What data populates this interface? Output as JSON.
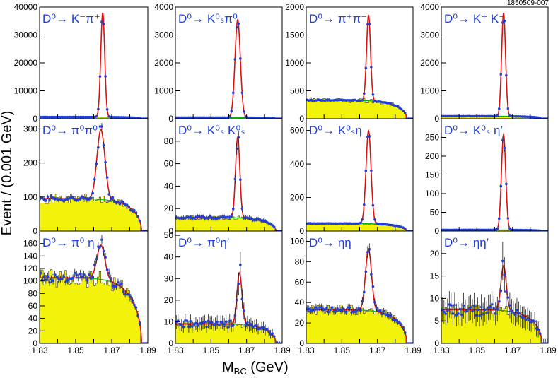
{
  "figure_code": "1850509-007",
  "x_axis_title": "M",
  "x_axis_title_sub": "BC",
  "x_axis_title_unit": " (GeV)",
  "y_axis_title": "Event / (0.001 GeV)",
  "colors": {
    "fit": "#e01010",
    "data": "#1f3fd8",
    "background_fill": "#f2f20a",
    "background_fit": "#10b010",
    "frame": "#000000"
  },
  "chart_data": [
    {
      "type": "line",
      "decay": "D⁰→ K⁻π⁺",
      "ymax": 40000,
      "yticks": [
        "0",
        "10000",
        "20000",
        "30000",
        "40000"
      ],
      "xticks": [],
      "peak_value": 38000,
      "peak_x": 1.865,
      "width": 0.0011,
      "bkg_level": 600
    },
    {
      "type": "line",
      "decay": "D⁰→ K⁰ₛπ⁰",
      "ymax": 4000,
      "yticks": [
        "0",
        "1000",
        "2000",
        "3000",
        "4000"
      ],
      "xticks": [],
      "peak_value": 3550,
      "peak_x": 1.865,
      "width": 0.0015,
      "bkg_level": 40
    },
    {
      "type": "line",
      "decay": "D⁰→ π⁺π⁻",
      "ymax": 2000,
      "yticks": [
        "0",
        "500",
        "1000",
        "1500",
        "2000"
      ],
      "xticks": [],
      "peak_value": 1870,
      "peak_x": 1.865,
      "width": 0.0011,
      "bkg_level": 330
    },
    {
      "type": "line",
      "decay": "D⁰→ K⁺ K⁻",
      "ymax": 4000,
      "yticks": [
        "0",
        "1000",
        "2000",
        "3000",
        "4000"
      ],
      "xticks": [],
      "peak_value": 3800,
      "peak_x": 1.865,
      "width": 0.0011,
      "bkg_level": 90
    },
    {
      "type": "line",
      "decay": "D⁰→ π⁰π⁰",
      "ymax": 330,
      "yticks": [
        "0",
        "100",
        "200",
        "300"
      ],
      "xticks": [],
      "peak_value": 300,
      "peak_x": 1.864,
      "width": 0.0022,
      "bkg_level": 95
    },
    {
      "type": "line",
      "decay": "D⁰→ K⁰ₛ K⁰ₛ",
      "ymax": 100,
      "yticks": [
        "0",
        "20",
        "40",
        "60",
        "80"
      ],
      "xticks": [],
      "peak_value": 84,
      "peak_x": 1.865,
      "width": 0.0012,
      "bkg_level": 12
    },
    {
      "type": "line",
      "decay": "D⁰→ K⁰ₛη",
      "ymax": 670,
      "yticks": [
        "0",
        "200",
        "400",
        "600"
      ],
      "xticks": [],
      "peak_value": 600,
      "peak_x": 1.865,
      "width": 0.0014,
      "bkg_level": 45
    },
    {
      "type": "line",
      "decay": "D⁰→ K⁰ₛ η′",
      "ymax": 300,
      "yticks": [
        "0",
        "50",
        "100",
        "150",
        "200",
        "250"
      ],
      "xticks": [],
      "peak_value": 258,
      "peak_x": 1.865,
      "width": 0.0012,
      "bkg_level": 3
    },
    {
      "type": "line",
      "decay": "D⁰→ π⁰ η",
      "ymax": 180,
      "yticks": [
        "0",
        "20",
        "40",
        "60",
        "80",
        "100",
        "120",
        "140",
        "160"
      ],
      "xticks": [
        "1.83",
        "1.85",
        "1.87",
        "1.89"
      ],
      "peak_value": 160,
      "peak_x": 1.864,
      "width": 0.0022,
      "bkg_level": 105
    },
    {
      "type": "line",
      "decay": "D⁰→ π⁰η′",
      "ymax": 52,
      "yticks": [
        "0",
        "10",
        "20",
        "30",
        "40",
        "50"
      ],
      "xticks": [
        "1.83",
        "1.85",
        "1.87",
        "1.89"
      ],
      "peak_value": 33,
      "peak_x": 1.866,
      "width": 0.0014,
      "bkg_level": 9
    },
    {
      "type": "line",
      "decay": "D⁰→ ηη",
      "ymax": 110,
      "yticks": [
        "0",
        "20",
        "40",
        "60",
        "80",
        "100"
      ],
      "xticks": [
        "1.83",
        "1.85",
        "1.87",
        "1.89"
      ],
      "peak_value": 93,
      "peak_x": 1.865,
      "width": 0.0017,
      "bkg_level": 33
    },
    {
      "type": "line",
      "decay": "D⁰→ ηη′",
      "ymax": 25,
      "yticks": [
        "0",
        "5",
        "10",
        "15",
        "20"
      ],
      "xticks": [
        "1.83",
        "1.85",
        "1.87",
        "1.89"
      ],
      "peak_value": 17.5,
      "peak_x": 1.865,
      "width": 0.0015,
      "bkg_level": 7.5
    }
  ]
}
